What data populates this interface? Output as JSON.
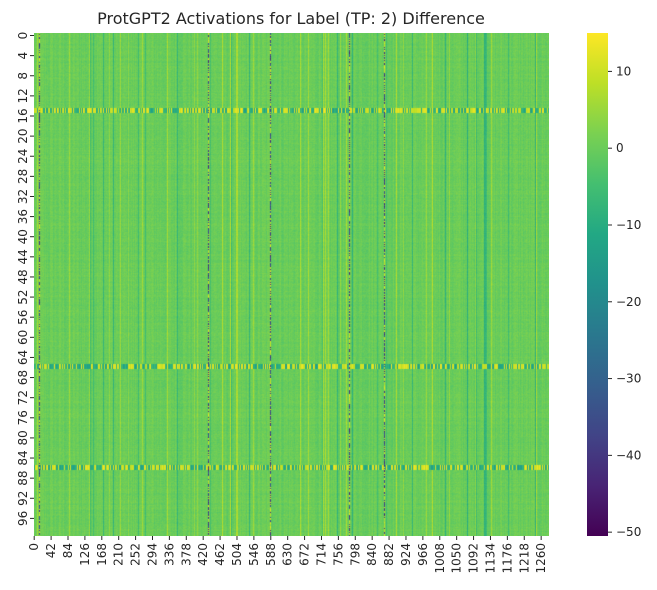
{
  "chart_data": {
    "type": "heatmap",
    "title": "ProtGPT2 Activations for Label (TP: 2) Difference",
    "xlabel": "",
    "ylabel": "",
    "n_rows": 100,
    "n_cols": 1280,
    "x_tick_labels": [
      "0",
      "42",
      "84",
      "126",
      "168",
      "210",
      "252",
      "294",
      "336",
      "378",
      "420",
      "462",
      "504",
      "546",
      "588",
      "630",
      "672",
      "714",
      "756",
      "798",
      "840",
      "882",
      "924",
      "966",
      "1008",
      "1050",
      "1092",
      "1134",
      "1176",
      "1218",
      "1260"
    ],
    "y_tick_labels": [
      "0",
      "4",
      "8",
      "12",
      "16",
      "20",
      "24",
      "28",
      "32",
      "36",
      "40",
      "44",
      "48",
      "52",
      "56",
      "60",
      "64",
      "68",
      "72",
      "76",
      "80",
      "84",
      "88",
      "92",
      "96"
    ],
    "colorbar": {
      "colormap": "viridis",
      "vmin": -50.5,
      "vmax": 15,
      "tick_labels": [
        "10",
        "0",
        "−10",
        "−20",
        "−30",
        "−40",
        "−50"
      ],
      "tick_values": [
        10,
        0,
        -10,
        -20,
        -30,
        -40,
        -50
      ]
    },
    "baseline_value": 0,
    "bright_rows": [
      15,
      66,
      86
    ],
    "dark_columns": [
      13,
      433,
      589,
      785,
      872
    ],
    "grid": false
  }
}
